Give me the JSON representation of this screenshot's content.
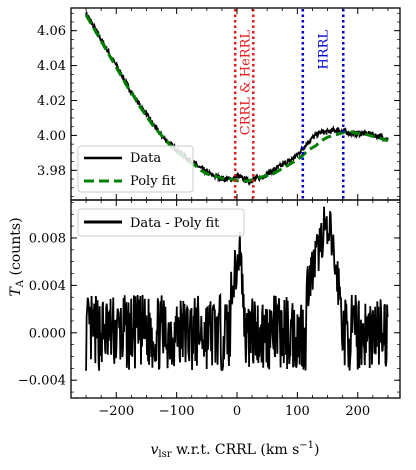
{
  "chart_data": [
    {
      "type": "line",
      "panel": "top",
      "xlim": [
        -275,
        270
      ],
      "ylim": [
        3.963,
        4.073
      ],
      "xticks": [
        -200,
        -100,
        0,
        100,
        200
      ],
      "yticks": [
        {
          "value": 3.98,
          "label": "3.98"
        },
        {
          "value": 4.0,
          "label": "4.00"
        },
        {
          "value": 4.02,
          "label": "4.02"
        },
        {
          "value": 4.04,
          "label": "4.04"
        },
        {
          "value": 4.06,
          "label": "4.06"
        }
      ],
      "legend_position": "lower-left",
      "series": [
        {
          "name": "Data",
          "color": "#000000",
          "style": "solid",
          "x": [
            -250,
            -240,
            -230,
            -220,
            -210,
            -200,
            -190,
            -180,
            -170,
            -160,
            -150,
            -140,
            -130,
            -120,
            -110,
            -100,
            -90,
            -80,
            -70,
            -60,
            -50,
            -40,
            -30,
            -20,
            -10,
            0,
            10,
            20,
            30,
            40,
            50,
            60,
            70,
            80,
            90,
            100,
            110,
            120,
            130,
            140,
            150,
            160,
            170,
            180,
            190,
            200,
            210,
            220,
            230,
            240,
            250
          ],
          "y": [
            4.07,
            4.064,
            4.058,
            4.052,
            4.046,
            4.04,
            4.034,
            4.028,
            4.022,
            4.017,
            4.012,
            4.007,
            4.002,
            3.998,
            3.995,
            3.992,
            3.989,
            3.986,
            3.984,
            3.981,
            3.979,
            3.977,
            3.976,
            3.975,
            3.975,
            3.977,
            3.975,
            3.974,
            3.975,
            3.976,
            3.978,
            3.98,
            3.982,
            3.984,
            3.986,
            3.989,
            3.993,
            3.997,
            4.0,
            4.002,
            4.002,
            4.003,
            4.003,
            4.002,
            4.001,
            4.001,
            4.001,
            4.001,
            4.0,
            3.999,
            3.998
          ]
        },
        {
          "name": "Poly fit",
          "color": "#008000",
          "style": "dashed",
          "x": [
            -250,
            -240,
            -230,
            -220,
            -210,
            -200,
            -190,
            -180,
            -170,
            -160,
            -150,
            -140,
            -130,
            -120,
            -110,
            -100,
            -90,
            -80,
            -70,
            -60,
            -50,
            -40,
            -30,
            -20,
            -10,
            0,
            10,
            20,
            30,
            40,
            50,
            60,
            70,
            80,
            90,
            100,
            110,
            120,
            130,
            140,
            150,
            160,
            170,
            180,
            190,
            200,
            210,
            220,
            230,
            240,
            250
          ],
          "y": [
            4.069,
            4.063,
            4.057,
            4.051,
            4.045,
            4.039,
            4.033,
            4.027,
            4.022,
            4.016,
            4.011,
            4.006,
            4.002,
            3.998,
            3.994,
            3.991,
            3.988,
            3.985,
            3.983,
            3.98,
            3.978,
            3.977,
            3.976,
            3.975,
            3.975,
            3.974,
            3.974,
            3.974,
            3.975,
            3.976,
            3.977,
            3.978,
            3.98,
            3.982,
            3.984,
            3.986,
            3.989,
            3.992,
            3.994,
            3.997,
            3.999,
            4.0,
            4.001,
            4.002,
            4.002,
            4.001,
            4.001,
            4.0,
            3.999,
            3.998,
            3.997
          ]
        }
      ],
      "annotations": [
        {
          "text": "CRRL & HeRRL",
          "color": "#e41a1c",
          "x_lines": [
            -3,
            27
          ],
          "text_x": 12
        },
        {
          "text": "HRRL",
          "color": "#0000cc",
          "x_lines": [
            109,
            176
          ],
          "text_x": 142
        }
      ]
    },
    {
      "type": "line",
      "panel": "bottom",
      "xlim": [
        -275,
        270
      ],
      "ylim": [
        -0.0055,
        0.0112
      ],
      "xticks": [
        -200,
        -100,
        0,
        100,
        200
      ],
      "xtick_labels": [
        "−200",
        "−100",
        "0",
        "100",
        "200"
      ],
      "yticks": [
        {
          "value": -0.004,
          "label": "−0.004"
        },
        {
          "value": 0.0,
          "label": "0.000"
        },
        {
          "value": 0.004,
          "label": "0.004"
        },
        {
          "value": 0.008,
          "label": "0.008"
        }
      ],
      "xlabel": "v_lsr w.r.t. CRRL (km s^-1)",
      "legend_position": "upper-left",
      "series": [
        {
          "name": "Data - Poly fit",
          "color": "#000000",
          "style": "solid",
          "x": [
            -250,
            -240,
            -230,
            -220,
            -210,
            -200,
            -190,
            -180,
            -170,
            -160,
            -150,
            -140,
            -130,
            -120,
            -110,
            -100,
            -90,
            -80,
            -70,
            -60,
            -50,
            -40,
            -30,
            -20,
            -10,
            0,
            5,
            10,
            15,
            20,
            30,
            40,
            50,
            60,
            70,
            80,
            90,
            100,
            110,
            120,
            130,
            140,
            145,
            150,
            155,
            160,
            170,
            180,
            190,
            200,
            210,
            220,
            230,
            240,
            250
          ],
          "y": [
            0.0015,
            -0.003,
            0.003,
            -0.0025,
            0.0028,
            -0.0038,
            0.0025,
            -0.0028,
            0.003,
            -0.0032,
            0.0026,
            -0.003,
            0.0028,
            -0.0026,
            0.003,
            -0.0035,
            0.0028,
            -0.003,
            0.0032,
            -0.0028,
            0.003,
            -0.0025,
            0.0035,
            -0.003,
            0.004,
            0.0055,
            0.0075,
            0.003,
            -0.001,
            0.0035,
            -0.003,
            0.003,
            -0.0035,
            0.0028,
            -0.003,
            0.0034,
            -0.0028,
            0.003,
            0.0025,
            0.0045,
            0.006,
            0.008,
            0.0092,
            0.0075,
            0.0085,
            0.0065,
            0.0035,
            -0.0032,
            0.003,
            -0.004,
            0.0028,
            -0.003,
            0.0032,
            -0.0035,
            -0.002
          ]
        }
      ]
    }
  ],
  "shared_ylabel": "T_A (counts)"
}
